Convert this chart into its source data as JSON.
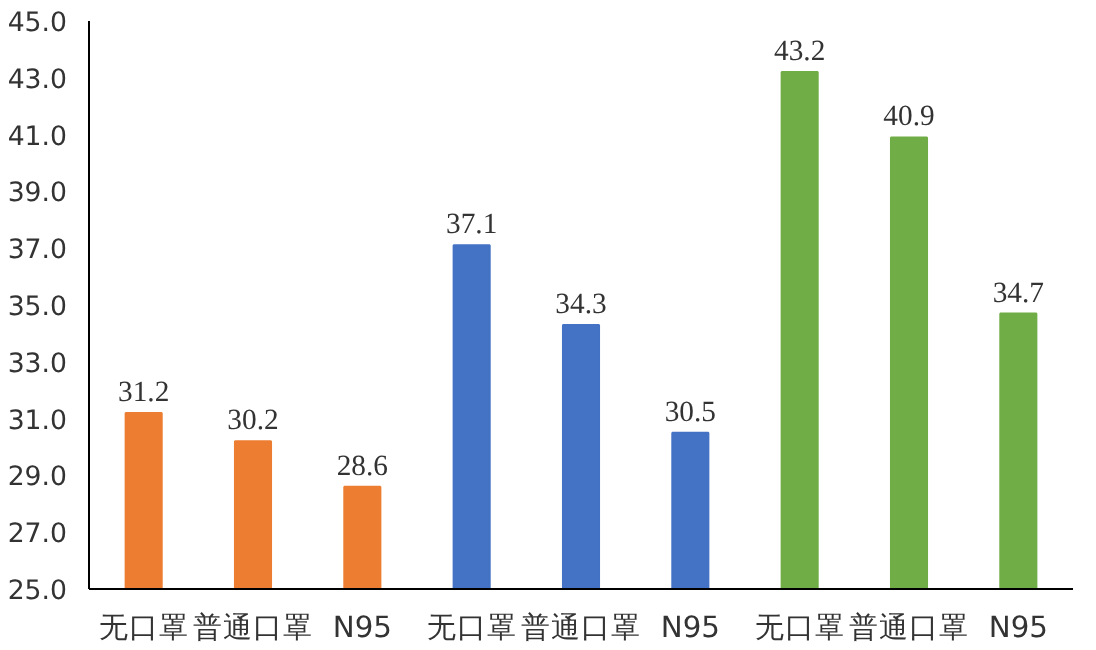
{
  "chart_data": {
    "type": "bar",
    "categories": [
      "无口罩",
      "普通口罩",
      "N95",
      "无口罩",
      "普通口罩",
      "N95",
      "无口罩",
      "普通口罩",
      "N95"
    ],
    "values": [
      31.2,
      30.2,
      28.6,
      37.1,
      34.3,
      30.5,
      43.2,
      40.9,
      34.7
    ],
    "colors": [
      "#ed7d31",
      "#ed7d31",
      "#ed7d31",
      "#4472c4",
      "#4472c4",
      "#4472c4",
      "#70ad47",
      "#70ad47",
      "#70ad47"
    ],
    "ylim": [
      25,
      45
    ],
    "yticks": [
      {
        "value": 25,
        "label": "25.0"
      },
      {
        "value": 27,
        "label": "27.0"
      },
      {
        "value": 29,
        "label": "29.0"
      },
      {
        "value": 31,
        "label": "31.0"
      },
      {
        "value": 33,
        "label": "33.0"
      },
      {
        "value": 35,
        "label": "35.0"
      },
      {
        "value": 37,
        "label": "37.0"
      },
      {
        "value": 39,
        "label": "39.0"
      },
      {
        "value": 41,
        "label": "41.0"
      },
      {
        "value": 43,
        "label": "43.0"
      },
      {
        "value": 45,
        "label": "45.0"
      }
    ],
    "data_labels": true,
    "grid": false
  }
}
